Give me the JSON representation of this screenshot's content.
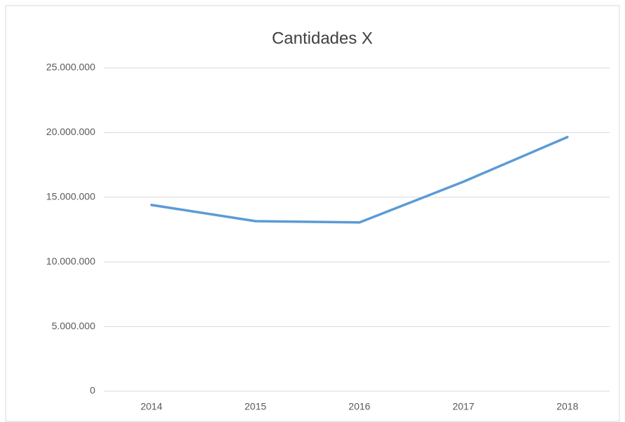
{
  "chart_data": {
    "type": "line",
    "title": "Cantidades X",
    "categories": [
      "2014",
      "2015",
      "2016",
      "2017",
      "2018"
    ],
    "series": [
      {
        "name": "Cantidades X",
        "color": "#5b9bd5",
        "values": [
          14400000,
          13150000,
          13050000,
          16200000,
          19650000
        ]
      }
    ],
    "ylim": [
      0,
      25000000
    ],
    "yticks": [
      0,
      {
        "value": 5000000,
        "label": "5.000.000"
      },
      {
        "value": 10000000,
        "label": "10.000.000"
      },
      {
        "value": 15000000,
        "label": "15.000.000"
      },
      {
        "value": 20000000,
        "label": "20.000.000"
      },
      {
        "value": 25000000,
        "label": "25.000.000"
      }
    ],
    "grid": true
  }
}
